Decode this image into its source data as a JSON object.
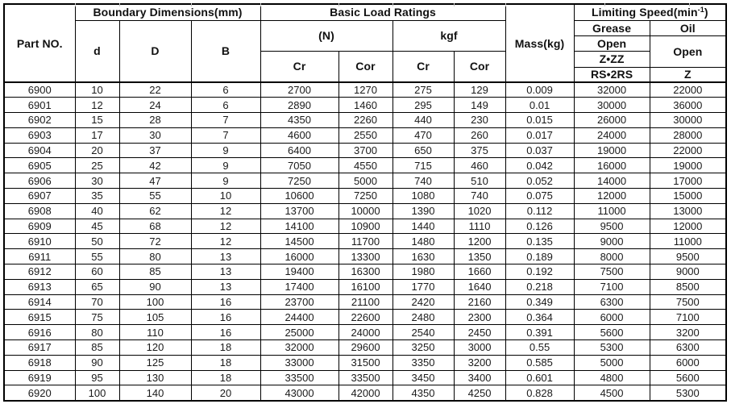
{
  "table": {
    "header": {
      "part_no": "Part NO.",
      "boundary_dimensions": "Boundary Dimensions(mm)",
      "d": "d",
      "D": "D",
      "B": "B",
      "basic_load_ratings": "Basic Load Ratings",
      "n_unit": "(N)",
      "kgf_unit": "kgf",
      "cr": "Cr",
      "cor": "Cor",
      "mass": "Mass(kg)",
      "limiting_speed_prefix": "Limiting Speed(min",
      "limiting_speed_sup": "-1",
      "limiting_speed_suffix": ")",
      "grease": "Grease",
      "oil": "Oil",
      "grease_open": "Open",
      "grease_zzz": "Z•ZZ",
      "grease_rs2rs": "RS•2RS",
      "oil_open": "Open",
      "oil_z": "Z"
    },
    "columns": [
      "Part NO.",
      "d",
      "D",
      "B",
      "Cr (N)",
      "Cor (N)",
      "Cr (kgf)",
      "Cor (kgf)",
      "Mass(kg)",
      "Grease Open Z•ZZ RS•2RS",
      "Oil Open Z"
    ],
    "rows": [
      [
        "6900",
        "10",
        "22",
        "6",
        "2700",
        "1270",
        "275",
        "129",
        "0.009",
        "32000",
        "22000"
      ],
      [
        "6901",
        "12",
        "24",
        "6",
        "2890",
        "1460",
        "295",
        "149",
        "0.01",
        "30000",
        "36000"
      ],
      [
        "6902",
        "15",
        "28",
        "7",
        "4350",
        "2260",
        "440",
        "230",
        "0.015",
        "26000",
        "30000"
      ],
      [
        "6903",
        "17",
        "30",
        "7",
        "4600",
        "2550",
        "470",
        "260",
        "0.017",
        "24000",
        "28000"
      ],
      [
        "6904",
        "20",
        "37",
        "9",
        "6400",
        "3700",
        "650",
        "375",
        "0.037",
        "19000",
        "22000"
      ],
      [
        "6905",
        "25",
        "42",
        "9",
        "7050",
        "4550",
        "715",
        "460",
        "0.042",
        "16000",
        "19000"
      ],
      [
        "6906",
        "30",
        "47",
        "9",
        "7250",
        "5000",
        "740",
        "510",
        "0.052",
        "14000",
        "17000"
      ],
      [
        "6907",
        "35",
        "55",
        "10",
        "10600",
        "7250",
        "1080",
        "740",
        "0.075",
        "12000",
        "15000"
      ],
      [
        "6908",
        "40",
        "62",
        "12",
        "13700",
        "10000",
        "1390",
        "1020",
        "0.112",
        "11000",
        "13000"
      ],
      [
        "6909",
        "45",
        "68",
        "12",
        "14100",
        "10900",
        "1440",
        "1110",
        "0.126",
        "9500",
        "12000"
      ],
      [
        "6910",
        "50",
        "72",
        "12",
        "14500",
        "11700",
        "1480",
        "1200",
        "0.135",
        "9000",
        "11000"
      ],
      [
        "6911",
        "55",
        "80",
        "13",
        "16000",
        "13300",
        "1630",
        "1350",
        "0.189",
        "8000",
        "9500"
      ],
      [
        "6912",
        "60",
        "85",
        "13",
        "19400",
        "16300",
        "1980",
        "1660",
        "0.192",
        "7500",
        "9000"
      ],
      [
        "6913",
        "65",
        "90",
        "13",
        "17400",
        "16100",
        "1770",
        "1640",
        "0.218",
        "7100",
        "8500"
      ],
      [
        "6914",
        "70",
        "100",
        "16",
        "23700",
        "21100",
        "2420",
        "2160",
        "0.349",
        "6300",
        "7500"
      ],
      [
        "6915",
        "75",
        "105",
        "16",
        "24400",
        "22600",
        "2480",
        "2300",
        "0.364",
        "6000",
        "7100"
      ],
      [
        "6916",
        "80",
        "110",
        "16",
        "25000",
        "24000",
        "2540",
        "2450",
        "0.391",
        "5600",
        "3200"
      ],
      [
        "6917",
        "85",
        "120",
        "18",
        "32000",
        "29600",
        "3250",
        "3000",
        "0.55",
        "5300",
        "6300"
      ],
      [
        "6918",
        "90",
        "125",
        "18",
        "33000",
        "31500",
        "3350",
        "3200",
        "0.585",
        "5000",
        "6000"
      ],
      [
        "6919",
        "95",
        "130",
        "18",
        "33500",
        "33500",
        "3450",
        "3400",
        "0.601",
        "4800",
        "5600"
      ],
      [
        "6920",
        "100",
        "140",
        "20",
        "43000",
        "42000",
        "4350",
        "4250",
        "0.828",
        "4500",
        "5300"
      ]
    ]
  },
  "colors": {
    "border": "#000000",
    "text": "#1a1a1a",
    "background": "#ffffff",
    "gridline_stub": "#c9c9c9"
  }
}
